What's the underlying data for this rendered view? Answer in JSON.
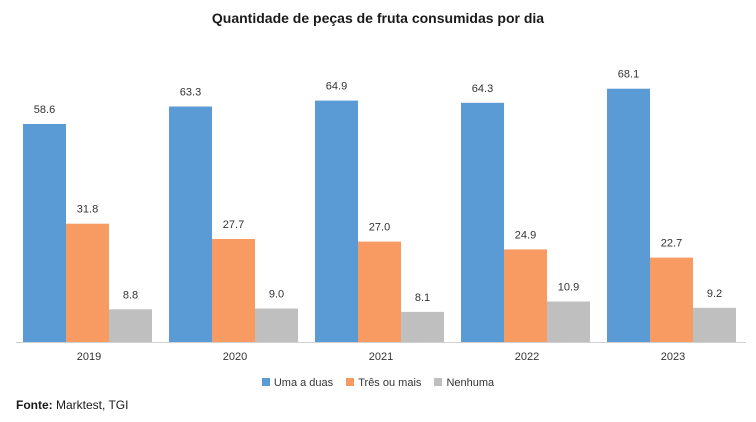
{
  "chart_data": {
    "type": "bar",
    "title": "Quantidade de peças de fruta consumidas por dia",
    "categories": [
      "2019",
      "2020",
      "2021",
      "2022",
      "2023"
    ],
    "series": [
      {
        "name": "Uma a duas",
        "values": [
          58.6,
          63.3,
          64.9,
          64.3,
          68.1
        ],
        "color": "#5B9BD5"
      },
      {
        "name": "Três ou mais",
        "values": [
          31.8,
          27.7,
          27.0,
          24.9,
          22.7
        ],
        "color": "#F79B63"
      },
      {
        "name": "Nenhuma",
        "values": [
          8.8,
          9.0,
          8.1,
          10.9,
          9.2
        ],
        "color": "#BFBFBF"
      }
    ],
    "xlabel": "",
    "ylabel": "",
    "ylim": [
      0,
      80
    ],
    "grid": false,
    "legend_position": "bottom"
  },
  "source": {
    "label": "Fonte:",
    "text": "Marktest, TGI"
  }
}
